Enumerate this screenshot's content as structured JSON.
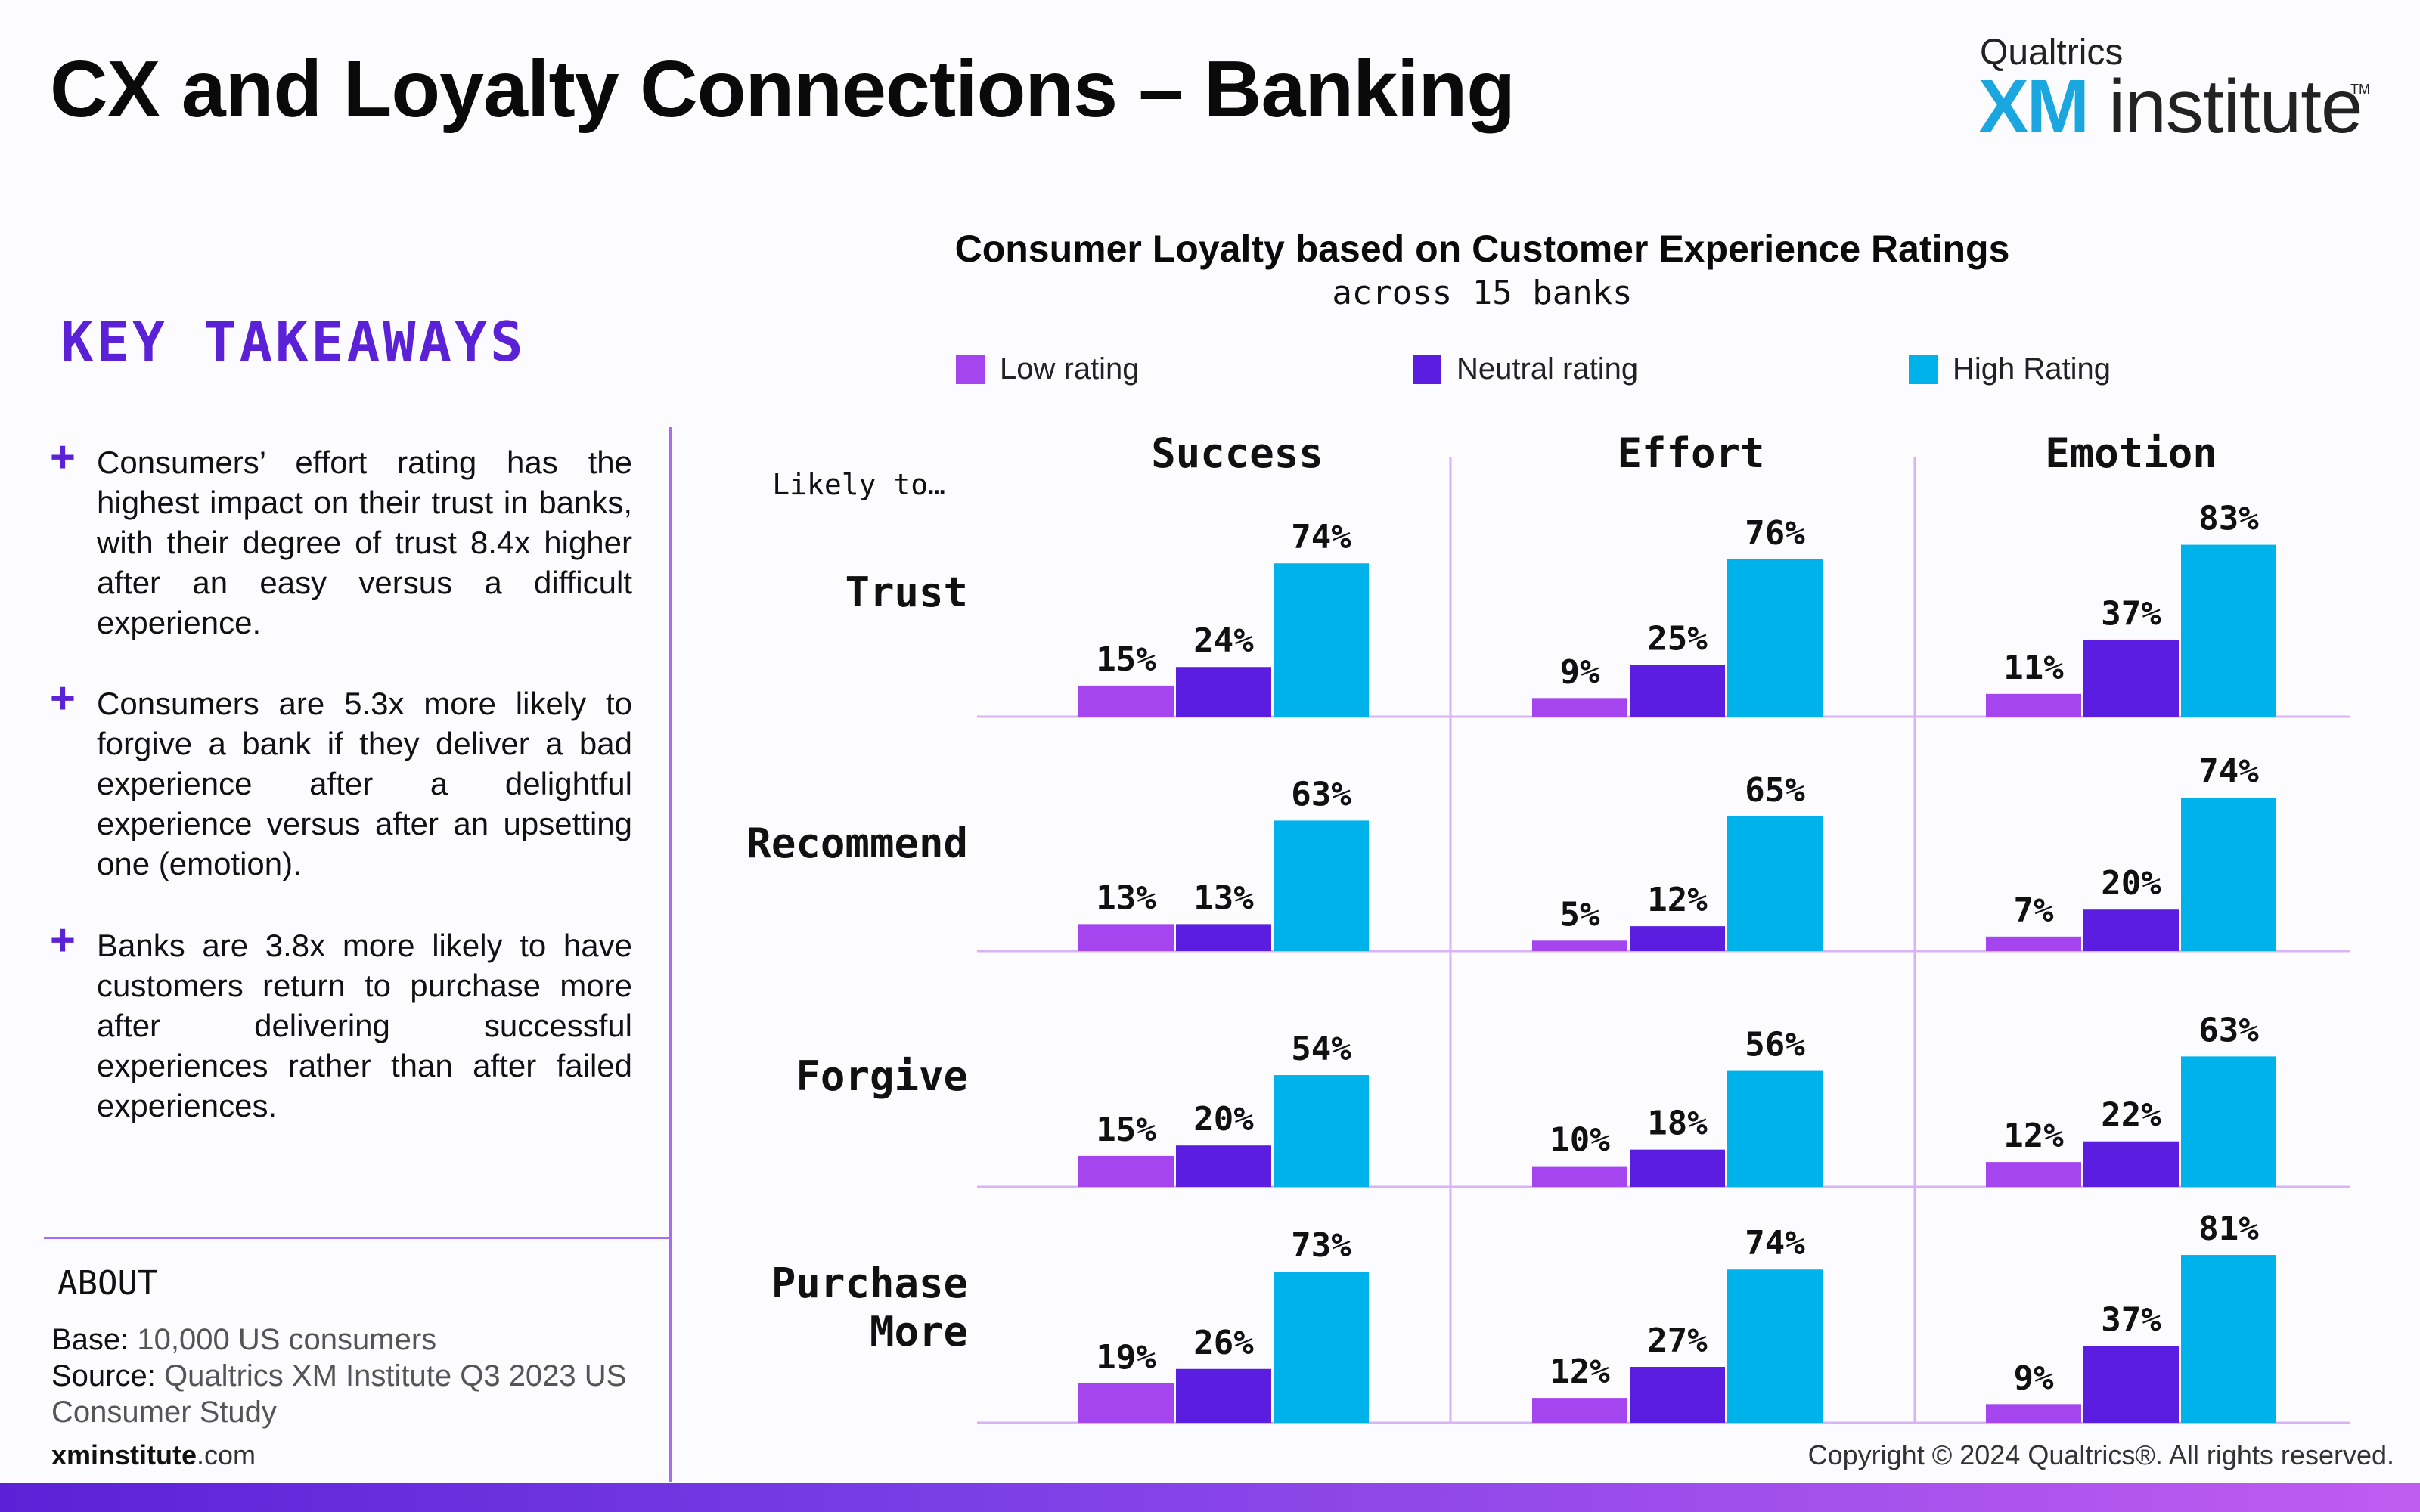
{
  "title": "CX and Loyalty Connections – Banking",
  "logo": {
    "brand": "Qualtrics",
    "xm": "XM",
    "institute": "institute",
    "tm": "TM"
  },
  "key_takeaways": {
    "heading": "KEY TAKEAWAYS",
    "items": [
      "Consumers’ effort rating has the highest impact on their trust in banks, with their degree of trust 8.4x higher after an easy versus a difficult experience.",
      "Consumers are 5.3x more likely to forgive a bank if they deliver a bad experience after a delightful experience versus after an upsetting one (emotion).",
      "Banks are 3.8x more likely to have customers return to purchase more after delivering successful experiences rather than after failed experiences."
    ]
  },
  "about": {
    "heading": "ABOUT",
    "base_label": "Base:",
    "base_value": "10,000 US consumers",
    "source_label": "Source:",
    "source_value": "Qualtrics XM Institute Q3 2023 US Consumer Study"
  },
  "footer": {
    "site_bold": "xminstitute",
    "site_rest": ".com",
    "copyright": "Copyright © 2024 Qualtrics®. All rights reserved."
  },
  "colors": {
    "low": "#a445f0",
    "neutral": "#5b1ee0",
    "high": "#00b2ea",
    "accent": "#5b21d6",
    "grid": "#d7b4f5"
  },
  "chart_data": {
    "type": "bar",
    "title": "Consumer Loyalty based on Customer Experience Ratings",
    "subtitle": "across 15 banks",
    "row_header": "Likely to…",
    "columns": [
      "Success",
      "Effort",
      "Emotion"
    ],
    "rows": [
      "Trust",
      "Recommend",
      "Forgive",
      "Purchase More"
    ],
    "series": [
      {
        "name": "Low rating",
        "values": [
          [
            15,
            9,
            11
          ],
          [
            13,
            5,
            7
          ],
          [
            15,
            10,
            12
          ],
          [
            19,
            12,
            9
          ]
        ]
      },
      {
        "name": "Neutral rating",
        "values": [
          [
            24,
            25,
            37
          ],
          [
            13,
            12,
            20
          ],
          [
            20,
            18,
            22
          ],
          [
            26,
            27,
            37
          ]
        ]
      },
      {
        "name": "High Rating",
        "values": [
          [
            74,
            76,
            83
          ],
          [
            63,
            65,
            74
          ],
          [
            54,
            56,
            63
          ],
          [
            73,
            74,
            81
          ]
        ]
      }
    ],
    "unit": "%"
  }
}
